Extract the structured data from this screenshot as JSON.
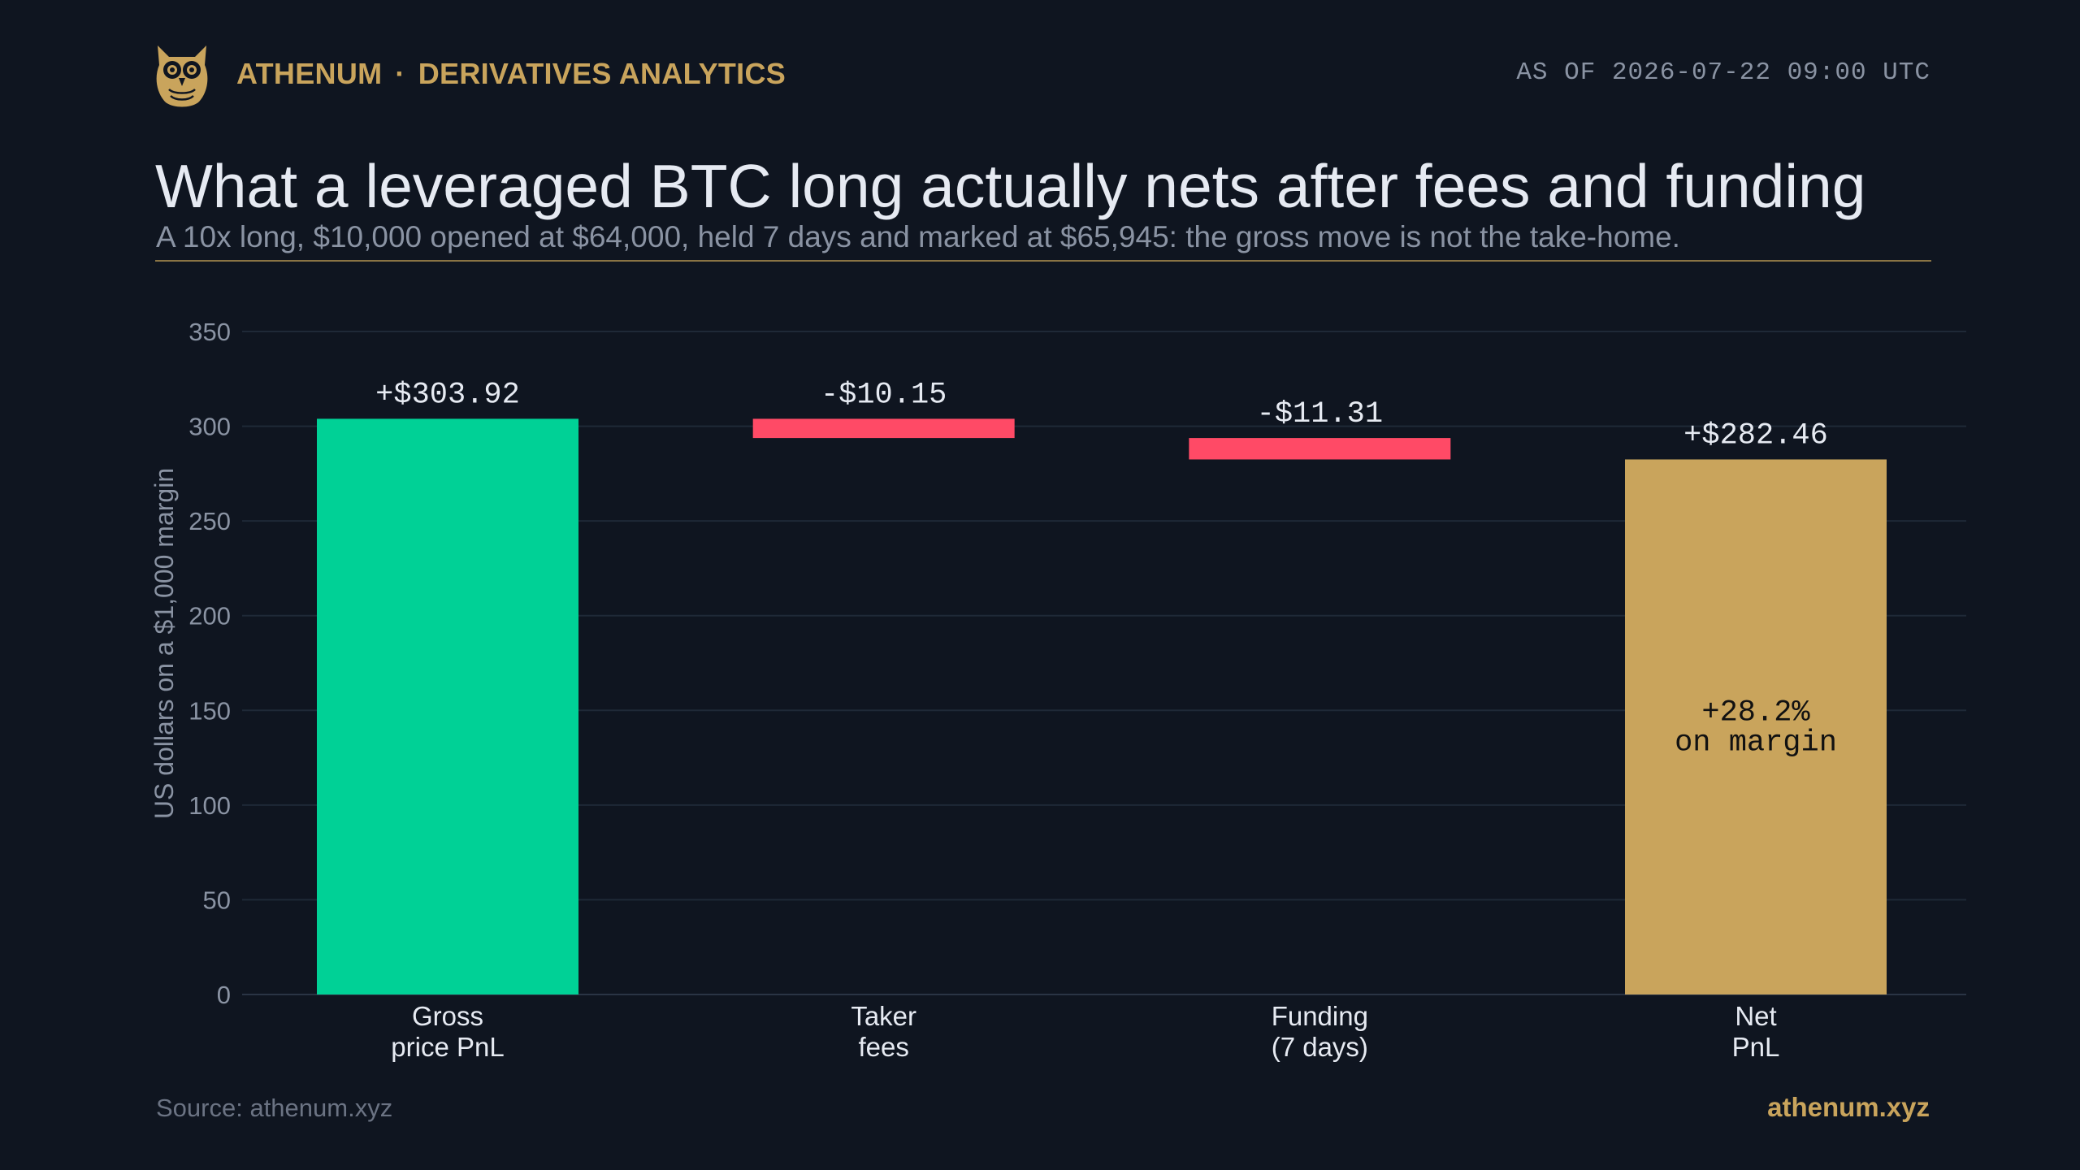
{
  "header": {
    "brand": "ATHENUM",
    "separator": "·",
    "section": "DERIVATIVES ANALYTICS",
    "as_of": "AS OF 2026-07-22 09:00 UTC",
    "logo_icon": "owl-icon"
  },
  "title": "What a leveraged BTC long actually nets after fees and funding",
  "subtitle": "A 10x long, $10,000 opened at $64,000, held 7 days and marked at $65,945: the gross move is not the take-home.",
  "footer": {
    "source": "Source: athenum.xyz",
    "site": "athenum.xyz"
  },
  "colors": {
    "background": "#0f1520",
    "gain": "#00d196",
    "loss": "#ff4a66",
    "net": "#c9a45c",
    "accent": "#c9a45c"
  },
  "chart_data": {
    "type": "bar",
    "subtype": "waterfall",
    "ylabel": "US dollars on a $1,000 margin",
    "ylim": [
      0,
      350
    ],
    "yticks": [
      0,
      50,
      100,
      150,
      200,
      250,
      300,
      350
    ],
    "grid": true,
    "categories": [
      [
        "Gross",
        "price PnL"
      ],
      [
        "Taker",
        "fees"
      ],
      [
        "Funding",
        "(7 days)"
      ],
      [
        "Net",
        "PnL"
      ]
    ],
    "bars": [
      {
        "kind": "gain",
        "start": 0,
        "end": 303.92,
        "value": 303.92,
        "label": "+$303.92"
      },
      {
        "kind": "loss",
        "start": 303.92,
        "end": 293.77,
        "value": -10.15,
        "label": "-$10.15"
      },
      {
        "kind": "loss",
        "start": 293.77,
        "end": 282.46,
        "value": -11.31,
        "label": "-$11.31"
      },
      {
        "kind": "net",
        "start": 0,
        "end": 282.46,
        "value": 282.46,
        "label": "+$282.46",
        "inner_label": [
          "+28.2%",
          "on margin"
        ]
      }
    ]
  }
}
